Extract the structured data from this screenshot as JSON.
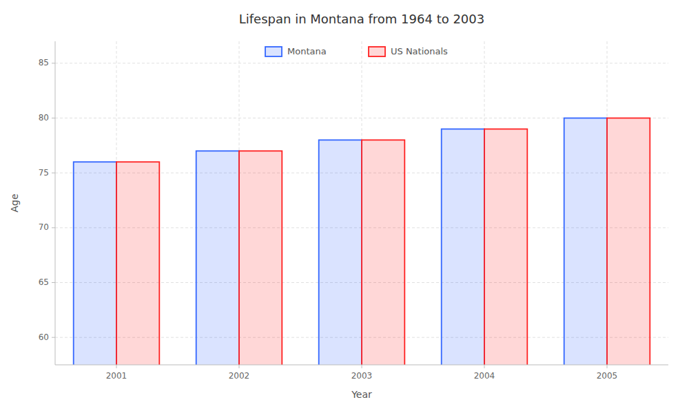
{
  "chart_data": {
    "type": "bar",
    "title": "Lifespan in Montana from 1964 to 2003",
    "xlabel": "Year",
    "ylabel": "Age",
    "categories": [
      "2001",
      "2002",
      "2003",
      "2004",
      "2005"
    ],
    "series": [
      {
        "name": "Montana",
        "color": "#3366ff",
        "values": [
          76,
          77,
          78,
          79,
          80
        ]
      },
      {
        "name": "US Nationals",
        "color": "#ff2222",
        "values": [
          76,
          77,
          78,
          79,
          80
        ]
      }
    ],
    "ylim": [
      57.5,
      87
    ],
    "yticks": [
      60,
      65,
      70,
      75,
      80,
      85
    ],
    "grid": true,
    "legend": "top"
  }
}
